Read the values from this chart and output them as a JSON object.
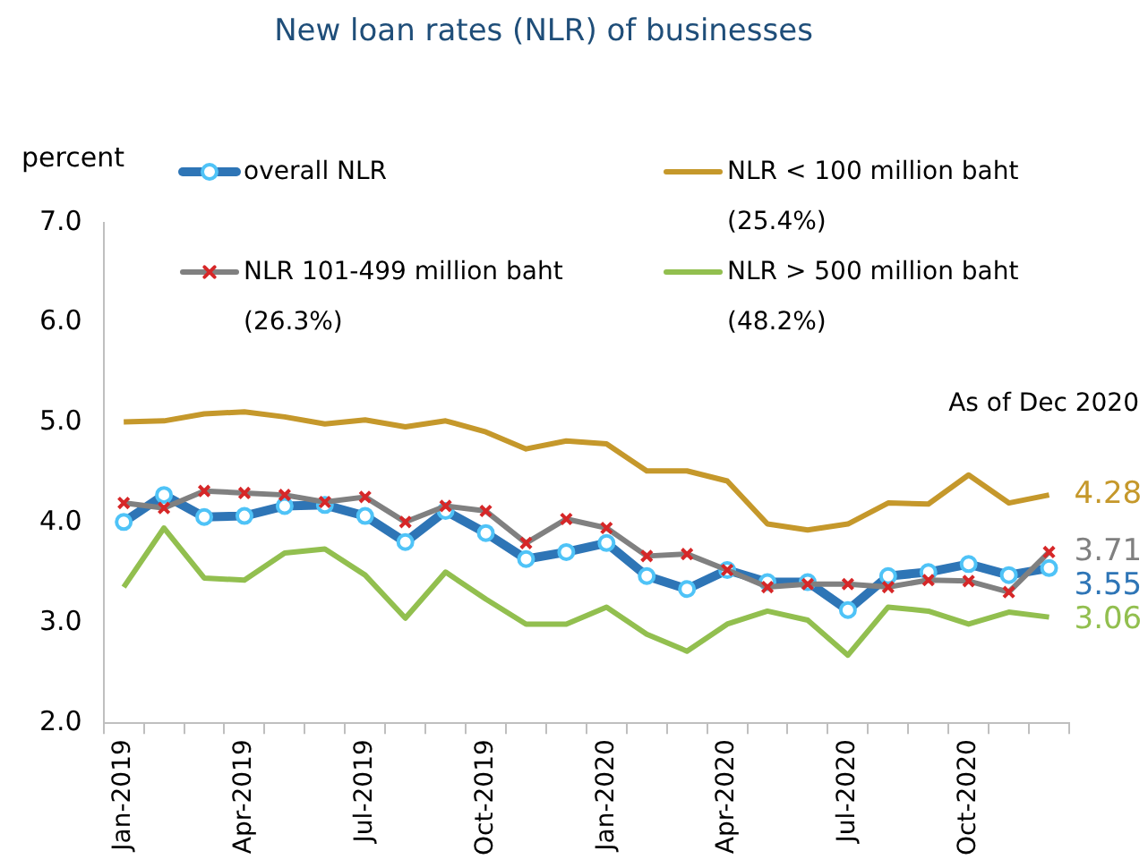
{
  "chart_data": {
    "type": "line",
    "title": "New loan rates (NLR) of businesses",
    "ylabel": "percent",
    "categories": [
      "Jan-2019",
      null,
      null,
      "Apr-2019",
      null,
      null,
      "Jul-2019",
      null,
      null,
      "Oct-2019",
      null,
      null,
      "Jan-2020",
      null,
      null,
      "Apr-2020",
      null,
      null,
      "Jul-2020",
      null,
      null,
      "Oct-2020",
      null,
      null
    ],
    "series": [
      {
        "name": "overall NLR",
        "color": "#2e75b6",
        "marker": "circle",
        "values": [
          4.01,
          4.28,
          4.06,
          4.07,
          4.17,
          4.18,
          4.07,
          3.81,
          4.12,
          3.9,
          3.64,
          3.71,
          3.8,
          3.47,
          3.34,
          3.53,
          3.41,
          3.41,
          3.13,
          3.47,
          3.51,
          3.59,
          3.48,
          3.55
        ],
        "value_labels": [
          null,
          null,
          null,
          null,
          null,
          null,
          null,
          null,
          null,
          null,
          null,
          null,
          null,
          null,
          null,
          null,
          null,
          null,
          null,
          null,
          null,
          null,
          null,
          "3.55"
        ]
      },
      {
        "name": "NLR < 100 million baht (25.4%)",
        "color": "#c5982b",
        "marker": "none",
        "values": [
          5.01,
          5.02,
          5.09,
          5.11,
          5.06,
          4.99,
          5.03,
          4.96,
          5.02,
          4.91,
          4.74,
          4.82,
          4.79,
          4.52,
          4.52,
          4.42,
          3.99,
          3.93,
          3.99,
          4.2,
          4.19,
          4.48,
          4.2,
          4.28
        ],
        "value_labels": [
          null,
          null,
          null,
          null,
          null,
          null,
          null,
          null,
          null,
          null,
          null,
          null,
          null,
          null,
          null,
          null,
          null,
          null,
          null,
          null,
          null,
          null,
          null,
          "4.28"
        ]
      },
      {
        "name": "NLR 101-499 million baht (26.3%)",
        "color": "#808080",
        "marker": "cross",
        "values": [
          4.2,
          4.15,
          4.32,
          4.3,
          4.28,
          4.21,
          4.26,
          4.01,
          4.17,
          4.12,
          3.8,
          4.04,
          3.95,
          3.67,
          3.69,
          3.53,
          3.36,
          3.39,
          3.39,
          3.36,
          3.43,
          3.42,
          3.31,
          3.71
        ],
        "value_labels": [
          null,
          null,
          null,
          null,
          null,
          null,
          null,
          null,
          null,
          null,
          null,
          null,
          null,
          null,
          null,
          null,
          null,
          null,
          null,
          null,
          null,
          null,
          null,
          "3.71"
        ]
      },
      {
        "name": "NLR > 500 million baht (48.2%)",
        "color": "#92bf4f",
        "marker": "none",
        "values": [
          3.36,
          3.95,
          3.45,
          3.43,
          3.7,
          3.74,
          3.48,
          3.05,
          3.51,
          3.24,
          2.99,
          2.99,
          3.16,
          2.89,
          2.72,
          2.99,
          3.12,
          3.03,
          2.68,
          3.16,
          3.12,
          2.99,
          3.11,
          3.06
        ],
        "value_labels": [
          null,
          null,
          null,
          null,
          null,
          null,
          null,
          null,
          null,
          null,
          null,
          null,
          null,
          null,
          null,
          null,
          null,
          null,
          null,
          null,
          null,
          null,
          null,
          "3.06"
        ]
      }
    ],
    "ylim": [
      2,
      7
    ],
    "yticks": [
      {
        "value": 2,
        "label": "2.0"
      },
      {
        "value": 3,
        "label": "3.0"
      },
      {
        "value": 4,
        "label": "4.0"
      },
      {
        "value": 5,
        "label": "5.0"
      },
      {
        "value": 6,
        "label": "6.0"
      },
      {
        "value": 7,
        "label": "7.0"
      }
    ],
    "grid": false,
    "legend": "top",
    "line_style": "solid",
    "annotations": [
      "As of Dec 2020"
    ]
  }
}
